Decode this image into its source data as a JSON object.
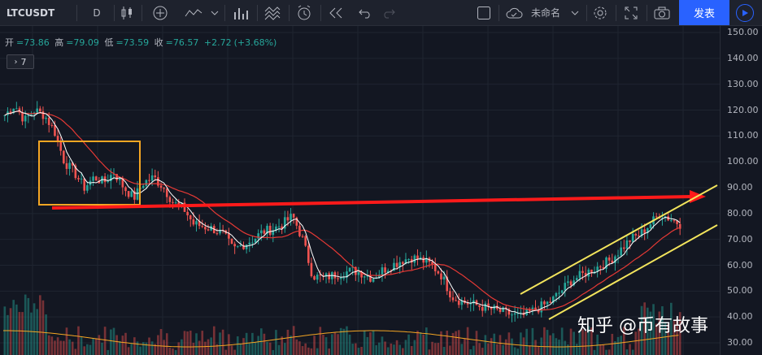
{
  "toolbar": {
    "symbol": "LTCUSDT",
    "interval": "D",
    "layout_name": "未命名",
    "publish_label": "发表"
  },
  "ohlc": {
    "open_label": "开",
    "open": "=73.86",
    "high_label": "高",
    "high": "=79.09",
    "low_label": "低",
    "low": "=73.59",
    "close_label": "收",
    "close": "=76.57",
    "change": "+2.72",
    "change_pct": "(+3.68%)"
  },
  "indicator_toggle": {
    "count": "7"
  },
  "price_axis": {
    "ticks": [
      "150.00",
      "140.00",
      "130.00",
      "120.00",
      "110.00",
      "100.00",
      "90.00",
      "80.00",
      "70.00",
      "60.00",
      "50.00",
      "40.00",
      "30.00"
    ]
  },
  "watermark": "知乎 @币有故事",
  "colors": {
    "background": "#131722",
    "up": "#26a69a",
    "down": "#ef5350",
    "ma_fast": "#ffffff",
    "ma_slow": "#e53935",
    "volume_ma": "#f5a623",
    "annotation_box": "#f5a623",
    "arrow": "#ff1a1a",
    "channel": "#f2e45c",
    "accent": "#2962ff"
  },
  "chart_data": {
    "type": "candlestick",
    "symbol": "LTCUSDT",
    "interval": "D",
    "ylim": [
      30,
      150
    ],
    "close_path": [
      118,
      122,
      116,
      120,
      118,
      112,
      100,
      96,
      90,
      94,
      92,
      96,
      90,
      86,
      92,
      94,
      90,
      84,
      82,
      76,
      75,
      74,
      72,
      66,
      68,
      70,
      73,
      74,
      76,
      79,
      70,
      56,
      55,
      56,
      57,
      58,
      57,
      55,
      58,
      60,
      62,
      63,
      62,
      60,
      56,
      48,
      46,
      45,
      44,
      43,
      42,
      41,
      40,
      42,
      44,
      46,
      50,
      54,
      56,
      58,
      60,
      62,
      66,
      70,
      72,
      76,
      80,
      78,
      76
    ]
  }
}
